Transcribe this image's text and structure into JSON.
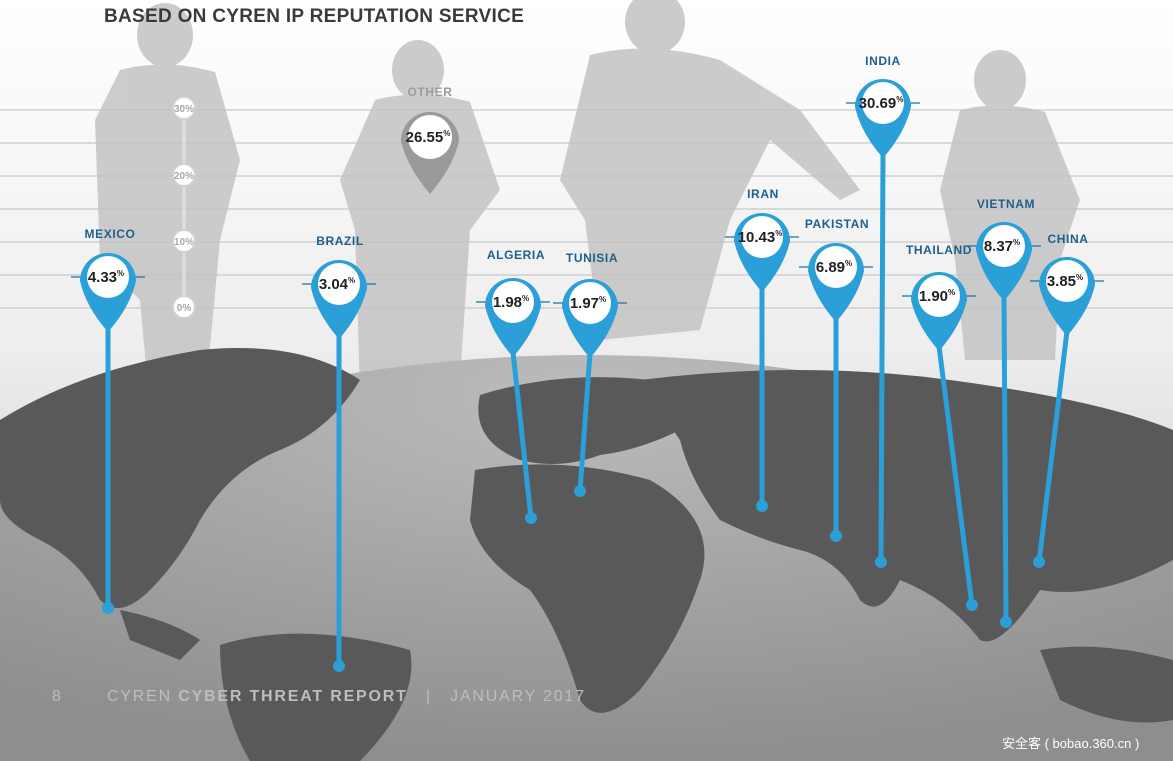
{
  "title": "BASED ON CYREN IP REPUTATION SERVICE",
  "footer": {
    "page_number": "8",
    "brand": "CYREN",
    "report_name": "CYBER THREAT REPORT",
    "separator": "|",
    "date": "JANUARY 2017"
  },
  "watermark": "安全客 ( bobao.360.cn )",
  "colors": {
    "pin": "#2a9fd8",
    "pin_dark": "#1b74a3",
    "label": "#1f5f8b",
    "other_pin": "#9a9a9a",
    "map_land": "#575757",
    "silhouette": "#bdbdbd"
  },
  "chart_data": {
    "type": "map-pins",
    "title": "BASED ON CYREN IP REPUTATION SERVICE",
    "unit": "%",
    "scale_ticks": [
      "30",
      "20",
      "10",
      "0"
    ],
    "series": [
      {
        "label": "MEXICO",
        "value": "4.33"
      },
      {
        "label": "BRAZIL",
        "value": "3.04"
      },
      {
        "label": "ALGERIA",
        "value": "1.98"
      },
      {
        "label": "TUNISIA",
        "value": "1.97"
      },
      {
        "label": "IRAN",
        "value": "10.43"
      },
      {
        "label": "PAKISTAN",
        "value": "6.89"
      },
      {
        "label": "INDIA",
        "value": "30.69"
      },
      {
        "label": "THAILAND",
        "value": "1.90"
      },
      {
        "label": "VIETNAM",
        "value": "8.37"
      },
      {
        "label": "CHINA",
        "value": "3.85"
      }
    ],
    "other": {
      "label": "OTHER",
      "value": "26.55"
    }
  }
}
